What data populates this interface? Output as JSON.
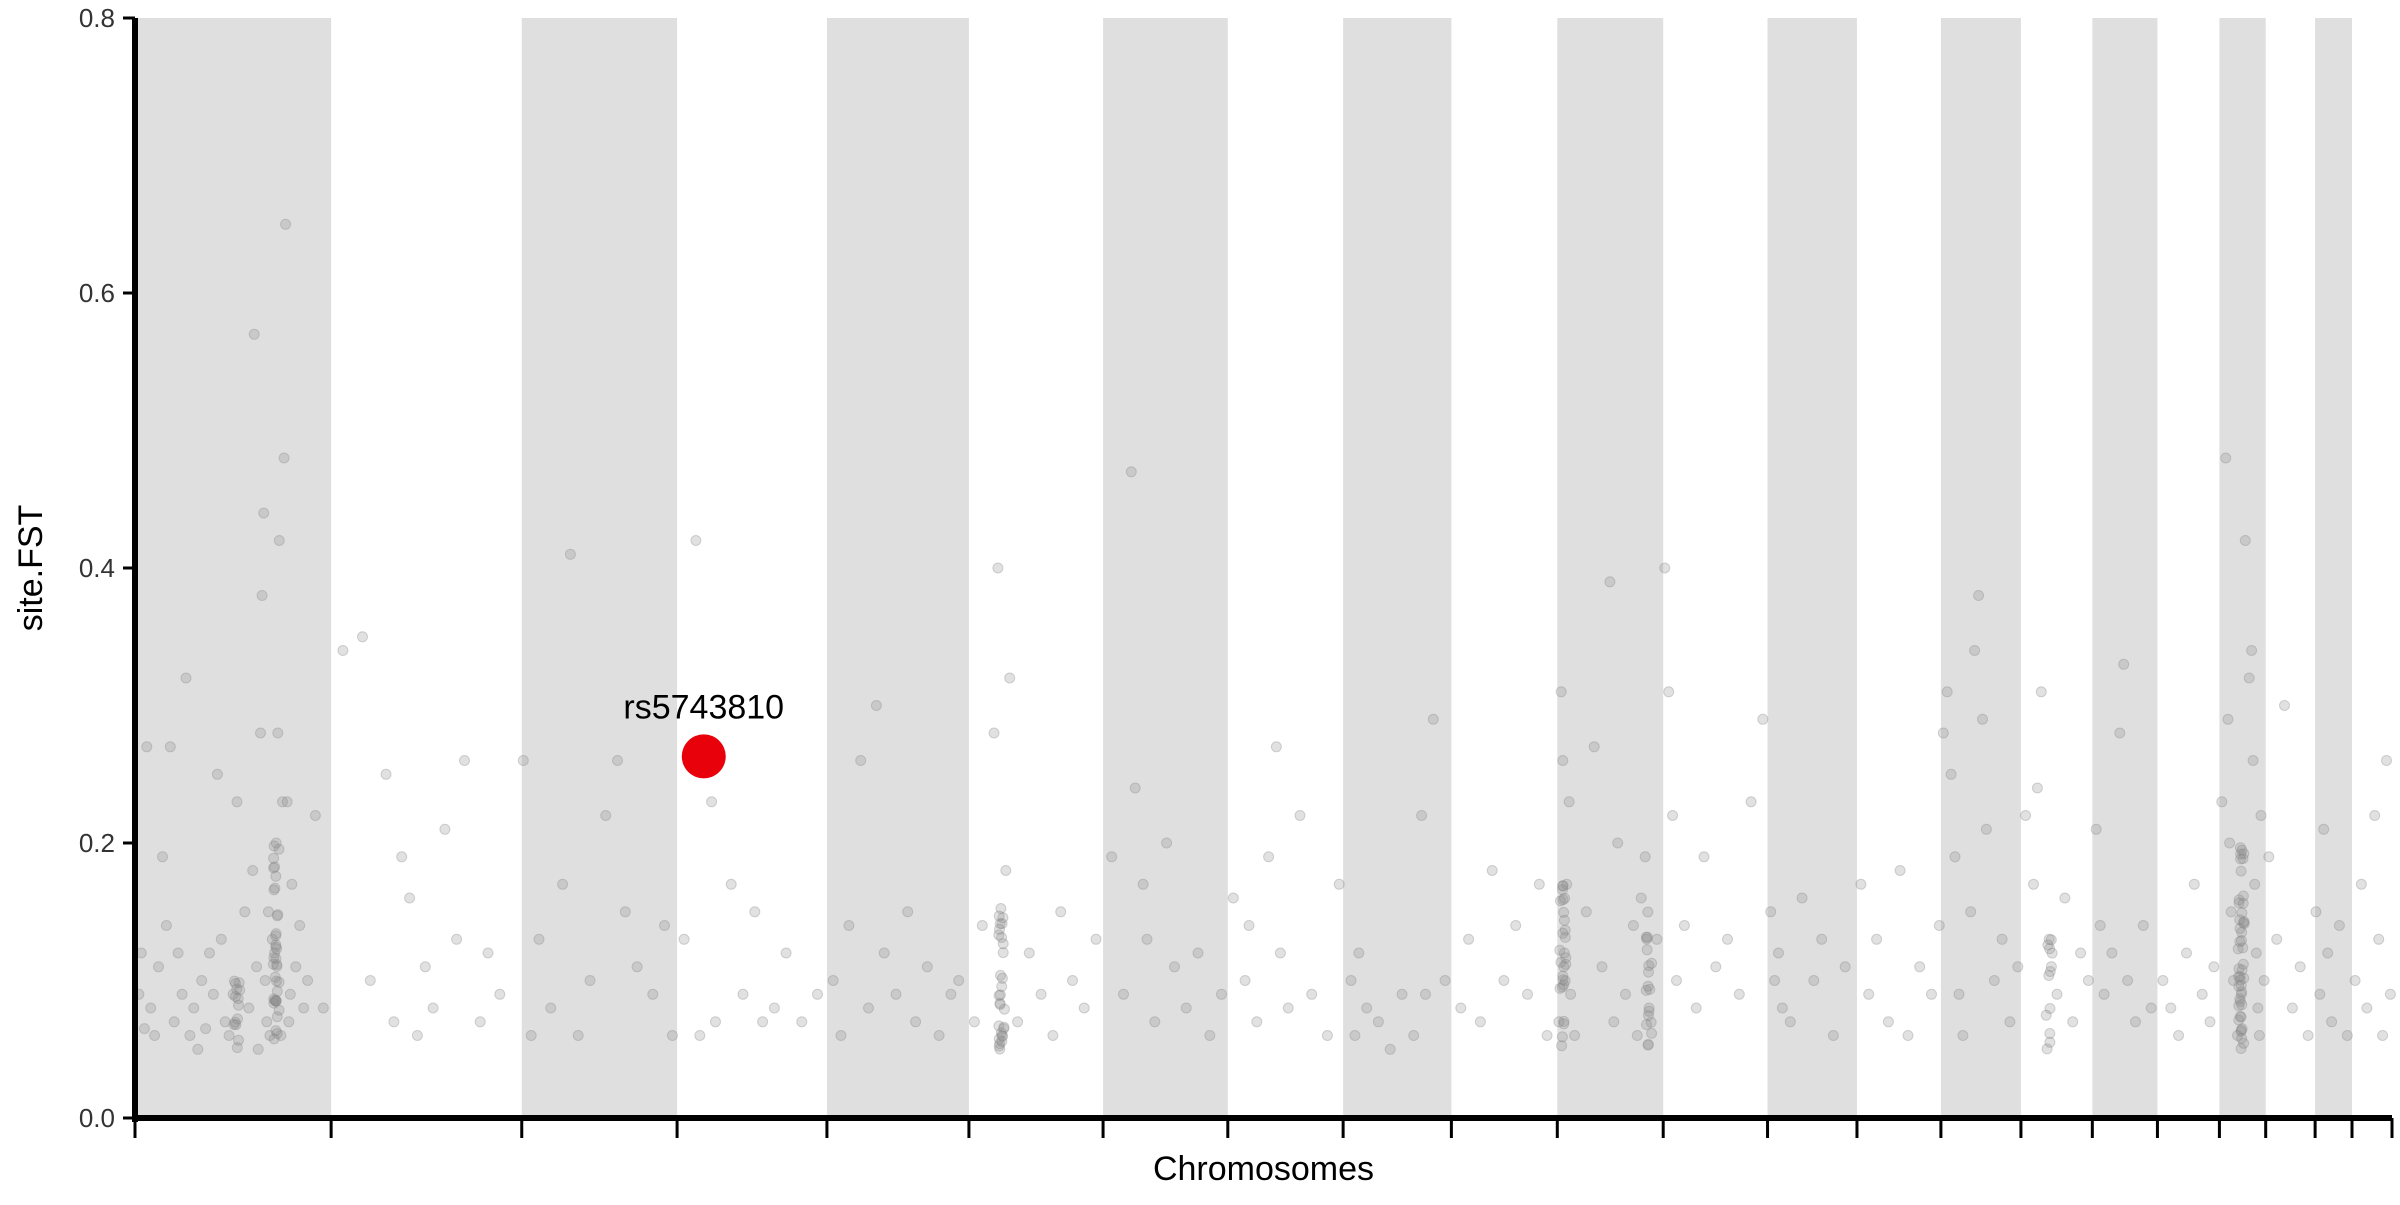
{
  "chart_data": {
    "type": "scatter",
    "title": "",
    "xlabel": "Chromosomes",
    "ylabel": "site.FST",
    "ylim": [
      0,
      0.8
    ],
    "yticks": [
      "0.0",
      "0.2",
      "0.4",
      "0.6",
      "0.8"
    ],
    "grid": false,
    "legend": "none",
    "colors": {
      "band_shade": "#dfdfdf",
      "point": "#888888",
      "highlight": "#e8000b",
      "axis": "#000000"
    },
    "point_opacity": 0.25,
    "chromosome_bands": [
      {
        "id": 1,
        "start": 0,
        "end": 250,
        "shaded": true
      },
      {
        "id": 2,
        "start": 250,
        "end": 493,
        "shaded": false
      },
      {
        "id": 3,
        "start": 493,
        "end": 691,
        "shaded": true
      },
      {
        "id": 4,
        "start": 691,
        "end": 882,
        "shaded": false
      },
      {
        "id": 5,
        "start": 882,
        "end": 1063,
        "shaded": true
      },
      {
        "id": 6,
        "start": 1063,
        "end": 1234,
        "shaded": false
      },
      {
        "id": 7,
        "start": 1234,
        "end": 1393,
        "shaded": true
      },
      {
        "id": 8,
        "start": 1393,
        "end": 1540,
        "shaded": false
      },
      {
        "id": 9,
        "start": 1540,
        "end": 1678,
        "shaded": true
      },
      {
        "id": 10,
        "start": 1678,
        "end": 1813,
        "shaded": false
      },
      {
        "id": 11,
        "start": 1813,
        "end": 1948,
        "shaded": true
      },
      {
        "id": 12,
        "start": 1948,
        "end": 2081,
        "shaded": false
      },
      {
        "id": 13,
        "start": 2081,
        "end": 2195,
        "shaded": true
      },
      {
        "id": 14,
        "start": 2195,
        "end": 2302,
        "shaded": false
      },
      {
        "id": 15,
        "start": 2302,
        "end": 2404,
        "shaded": true
      },
      {
        "id": 16,
        "start": 2404,
        "end": 2495,
        "shaded": false
      },
      {
        "id": 17,
        "start": 2495,
        "end": 2578,
        "shaded": true
      },
      {
        "id": 18,
        "start": 2578,
        "end": 2657,
        "shaded": false
      },
      {
        "id": 19,
        "start": 2657,
        "end": 2716,
        "shaded": true
      },
      {
        "id": 20,
        "start": 2716,
        "end": 2779,
        "shaded": false
      },
      {
        "id": 21,
        "start": 2779,
        "end": 2826,
        "shaded": true
      },
      {
        "id": 22,
        "start": 2826,
        "end": 2877,
        "shaded": false
      }
    ],
    "x_range": [
      0,
      2877
    ],
    "points": [
      [
        5,
        0.09
      ],
      [
        8,
        0.12
      ],
      [
        12,
        0.065
      ],
      [
        15,
        0.27
      ],
      [
        20,
        0.08
      ],
      [
        25,
        0.06
      ],
      [
        30,
        0.11
      ],
      [
        35,
        0.19
      ],
      [
        40,
        0.14
      ],
      [
        45,
        0.27
      ],
      [
        50,
        0.07
      ],
      [
        55,
        0.12
      ],
      [
        60,
        0.09
      ],
      [
        65,
        0.32
      ],
      [
        70,
        0.06
      ],
      [
        75,
        0.08
      ],
      [
        80,
        0.05
      ],
      [
        85,
        0.1
      ],
      [
        90,
        0.065
      ],
      [
        95,
        0.12
      ],
      [
        100,
        0.09
      ],
      [
        105,
        0.25
      ],
      [
        110,
        0.13
      ],
      [
        115,
        0.07
      ],
      [
        120,
        0.06
      ],
      [
        125,
        0.09
      ],
      [
        130,
        0.23
      ],
      [
        140,
        0.15
      ],
      [
        145,
        0.08
      ],
      [
        150,
        0.18
      ],
      [
        152,
        0.57
      ],
      [
        155,
        0.11
      ],
      [
        157,
        0.05
      ],
      [
        160,
        0.28
      ],
      [
        162,
        0.38
      ],
      [
        164,
        0.44
      ],
      [
        166,
        0.1
      ],
      [
        168,
        0.07
      ],
      [
        170,
        0.15
      ],
      [
        172,
        0.06
      ],
      [
        175,
        0.13
      ],
      [
        178,
        0.12
      ],
      [
        180,
        0.2
      ],
      [
        182,
        0.28
      ],
      [
        184,
        0.42
      ],
      [
        186,
        0.06
      ],
      [
        188,
        0.23
      ],
      [
        190,
        0.48
      ],
      [
        192,
        0.65
      ],
      [
        194,
        0.23
      ],
      [
        196,
        0.07
      ],
      [
        198,
        0.09
      ],
      [
        200,
        0.17
      ],
      [
        205,
        0.11
      ],
      [
        210,
        0.14
      ],
      [
        215,
        0.08
      ],
      [
        220,
        0.1
      ],
      [
        230,
        0.22
      ],
      [
        240,
        0.08
      ],
      [
        265,
        0.34
      ],
      [
        290,
        0.35
      ],
      [
        300,
        0.1
      ],
      [
        320,
        0.25
      ],
      [
        330,
        0.07
      ],
      [
        340,
        0.19
      ],
      [
        350,
        0.16
      ],
      [
        360,
        0.06
      ],
      [
        370,
        0.11
      ],
      [
        380,
        0.08
      ],
      [
        395,
        0.21
      ],
      [
        410,
        0.13
      ],
      [
        420,
        0.26
      ],
      [
        440,
        0.07
      ],
      [
        450,
        0.12
      ],
      [
        465,
        0.09
      ],
      [
        495,
        0.26
      ],
      [
        505,
        0.06
      ],
      [
        515,
        0.13
      ],
      [
        530,
        0.08
      ],
      [
        545,
        0.17
      ],
      [
        555,
        0.41
      ],
      [
        565,
        0.06
      ],
      [
        580,
        0.1
      ],
      [
        600,
        0.22
      ],
      [
        615,
        0.26
      ],
      [
        625,
        0.15
      ],
      [
        640,
        0.11
      ],
      [
        660,
        0.09
      ],
      [
        675,
        0.14
      ],
      [
        685,
        0.06
      ],
      [
        700,
        0.13
      ],
      [
        715,
        0.42
      ],
      [
        720,
        0.06
      ],
      [
        735,
        0.23
      ],
      [
        740,
        0.07
      ],
      [
        760,
        0.17
      ],
      [
        775,
        0.09
      ],
      [
        790,
        0.15
      ],
      [
        800,
        0.07
      ],
      [
        815,
        0.08
      ],
      [
        830,
        0.12
      ],
      [
        850,
        0.07
      ],
      [
        870,
        0.09
      ],
      [
        890,
        0.1
      ],
      [
        900,
        0.06
      ],
      [
        910,
        0.14
      ],
      [
        925,
        0.26
      ],
      [
        935,
        0.08
      ],
      [
        945,
        0.3
      ],
      [
        955,
        0.12
      ],
      [
        970,
        0.09
      ],
      [
        985,
        0.15
      ],
      [
        995,
        0.07
      ],
      [
        1010,
        0.11
      ],
      [
        1025,
        0.06
      ],
      [
        1040,
        0.09
      ],
      [
        1050,
        0.1
      ],
      [
        1070,
        0.07
      ],
      [
        1080,
        0.14
      ],
      [
        1095,
        0.28
      ],
      [
        1100,
        0.4
      ],
      [
        1105,
        0.06
      ],
      [
        1110,
        0.18
      ],
      [
        1115,
        0.32
      ],
      [
        1125,
        0.07
      ],
      [
        1140,
        0.12
      ],
      [
        1155,
        0.09
      ],
      [
        1170,
        0.06
      ],
      [
        1180,
        0.15
      ],
      [
        1195,
        0.1
      ],
      [
        1210,
        0.08
      ],
      [
        1225,
        0.13
      ],
      [
        1245,
        0.19
      ],
      [
        1260,
        0.09
      ],
      [
        1270,
        0.47
      ],
      [
        1275,
        0.24
      ],
      [
        1285,
        0.17
      ],
      [
        1290,
        0.13
      ],
      [
        1300,
        0.07
      ],
      [
        1315,
        0.2
      ],
      [
        1325,
        0.11
      ],
      [
        1340,
        0.08
      ],
      [
        1355,
        0.12
      ],
      [
        1370,
        0.06
      ],
      [
        1385,
        0.09
      ],
      [
        1400,
        0.16
      ],
      [
        1415,
        0.1
      ],
      [
        1420,
        0.14
      ],
      [
        1430,
        0.07
      ],
      [
        1445,
        0.19
      ],
      [
        1455,
        0.27
      ],
      [
        1460,
        0.12
      ],
      [
        1470,
        0.08
      ],
      [
        1485,
        0.22
      ],
      [
        1500,
        0.09
      ],
      [
        1520,
        0.06
      ],
      [
        1535,
        0.17
      ],
      [
        1550,
        0.1
      ],
      [
        1555,
        0.06
      ],
      [
        1560,
        0.12
      ],
      [
        1570,
        0.08
      ],
      [
        1585,
        0.07
      ],
      [
        1600,
        0.05
      ],
      [
        1615,
        0.09
      ],
      [
        1630,
        0.06
      ],
      [
        1640,
        0.22
      ],
      [
        1645,
        0.09
      ],
      [
        1655,
        0.29
      ],
      [
        1670,
        0.1
      ],
      [
        1690,
        0.08
      ],
      [
        1700,
        0.13
      ],
      [
        1715,
        0.07
      ],
      [
        1730,
        0.18
      ],
      [
        1745,
        0.1
      ],
      [
        1760,
        0.14
      ],
      [
        1775,
        0.09
      ],
      [
        1790,
        0.17
      ],
      [
        1800,
        0.06
      ],
      [
        1815,
        0.07
      ],
      [
        1818,
        0.31
      ],
      [
        1820,
        0.26
      ],
      [
        1822,
        0.12
      ],
      [
        1825,
        0.17
      ],
      [
        1828,
        0.23
      ],
      [
        1830,
        0.09
      ],
      [
        1835,
        0.06
      ],
      [
        1850,
        0.15
      ],
      [
        1860,
        0.27
      ],
      [
        1870,
        0.11
      ],
      [
        1880,
        0.39
      ],
      [
        1885,
        0.07
      ],
      [
        1890,
        0.2
      ],
      [
        1900,
        0.09
      ],
      [
        1910,
        0.14
      ],
      [
        1915,
        0.06
      ],
      [
        1920,
        0.16
      ],
      [
        1925,
        0.19
      ],
      [
        1930,
        0.08
      ],
      [
        1940,
        0.13
      ],
      [
        1950,
        0.4
      ],
      [
        1955,
        0.31
      ],
      [
        1960,
        0.22
      ],
      [
        1965,
        0.1
      ],
      [
        1975,
        0.14
      ],
      [
        1990,
        0.08
      ],
      [
        2000,
        0.19
      ],
      [
        2015,
        0.11
      ],
      [
        2030,
        0.13
      ],
      [
        2045,
        0.09
      ],
      [
        2060,
        0.23
      ],
      [
        2075,
        0.29
      ],
      [
        2085,
        0.15
      ],
      [
        2090,
        0.1
      ],
      [
        2095,
        0.12
      ],
      [
        2100,
        0.08
      ],
      [
        2110,
        0.07
      ],
      [
        2125,
        0.16
      ],
      [
        2140,
        0.1
      ],
      [
        2150,
        0.13
      ],
      [
        2165,
        0.06
      ],
      [
        2180,
        0.11
      ],
      [
        2200,
        0.17
      ],
      [
        2210,
        0.09
      ],
      [
        2220,
        0.13
      ],
      [
        2235,
        0.07
      ],
      [
        2250,
        0.18
      ],
      [
        2260,
        0.06
      ],
      [
        2275,
        0.11
      ],
      [
        2290,
        0.09
      ],
      [
        2300,
        0.14
      ],
      [
        2305,
        0.28
      ],
      [
        2310,
        0.31
      ],
      [
        2315,
        0.25
      ],
      [
        2320,
        0.19
      ],
      [
        2325,
        0.09
      ],
      [
        2330,
        0.06
      ],
      [
        2340,
        0.15
      ],
      [
        2345,
        0.34
      ],
      [
        2350,
        0.38
      ],
      [
        2355,
        0.29
      ],
      [
        2360,
        0.21
      ],
      [
        2370,
        0.1
      ],
      [
        2380,
        0.13
      ],
      [
        2390,
        0.07
      ],
      [
        2400,
        0.11
      ],
      [
        2410,
        0.22
      ],
      [
        2420,
        0.17
      ],
      [
        2425,
        0.24
      ],
      [
        2430,
        0.31
      ],
      [
        2440,
        0.13
      ],
      [
        2450,
        0.09
      ],
      [
        2460,
        0.16
      ],
      [
        2470,
        0.07
      ],
      [
        2480,
        0.12
      ],
      [
        2490,
        0.1
      ],
      [
        2500,
        0.21
      ],
      [
        2505,
        0.14
      ],
      [
        2510,
        0.09
      ],
      [
        2520,
        0.12
      ],
      [
        2530,
        0.28
      ],
      [
        2535,
        0.33
      ],
      [
        2540,
        0.1
      ],
      [
        2550,
        0.07
      ],
      [
        2560,
        0.14
      ],
      [
        2570,
        0.08
      ],
      [
        2585,
        0.1
      ],
      [
        2595,
        0.08
      ],
      [
        2605,
        0.06
      ],
      [
        2615,
        0.12
      ],
      [
        2625,
        0.17
      ],
      [
        2635,
        0.09
      ],
      [
        2645,
        0.07
      ],
      [
        2650,
        0.11
      ],
      [
        2660,
        0.23
      ],
      [
        2665,
        0.48
      ],
      [
        2668,
        0.29
      ],
      [
        2670,
        0.2
      ],
      [
        2672,
        0.15
      ],
      [
        2675,
        0.1
      ],
      [
        2680,
        0.06
      ],
      [
        2685,
        0.09
      ],
      [
        2690,
        0.42
      ],
      [
        2695,
        0.32
      ],
      [
        2698,
        0.34
      ],
      [
        2700,
        0.26
      ],
      [
        2702,
        0.17
      ],
      [
        2704,
        0.12
      ],
      [
        2706,
        0.08
      ],
      [
        2708,
        0.06
      ],
      [
        2710,
        0.22
      ],
      [
        2714,
        0.1
      ],
      [
        2720,
        0.19
      ],
      [
        2730,
        0.13
      ],
      [
        2740,
        0.3
      ],
      [
        2750,
        0.08
      ],
      [
        2760,
        0.11
      ],
      [
        2770,
        0.06
      ],
      [
        2780,
        0.15
      ],
      [
        2785,
        0.09
      ],
      [
        2790,
        0.21
      ],
      [
        2795,
        0.12
      ],
      [
        2800,
        0.07
      ],
      [
        2810,
        0.14
      ],
      [
        2820,
        0.06
      ],
      [
        2830,
        0.1
      ],
      [
        2838,
        0.17
      ],
      [
        2845,
        0.08
      ],
      [
        2855,
        0.22
      ],
      [
        2860,
        0.13
      ],
      [
        2865,
        0.06
      ],
      [
        2870,
        0.26
      ],
      [
        2875,
        0.09
      ]
    ],
    "dense_clusters": [
      {
        "x": 180,
        "ymin": 0.05,
        "ymax": 0.2,
        "count": 35
      },
      {
        "x": 130,
        "ymin": 0.05,
        "ymax": 0.1,
        "count": 14
      },
      {
        "x": 1105,
        "ymin": 0.05,
        "ymax": 0.16,
        "count": 28
      },
      {
        "x": 1820,
        "ymin": 0.05,
        "ymax": 0.17,
        "count": 26
      },
      {
        "x": 1930,
        "ymin": 0.05,
        "ymax": 0.16,
        "count": 18
      },
      {
        "x": 2685,
        "ymin": 0.05,
        "ymax": 0.2,
        "count": 45
      },
      {
        "x": 2440,
        "ymin": 0.05,
        "ymax": 0.13,
        "count": 12
      }
    ],
    "highlight": {
      "label": "rs5743810",
      "x": 725,
      "y": 0.263
    }
  }
}
